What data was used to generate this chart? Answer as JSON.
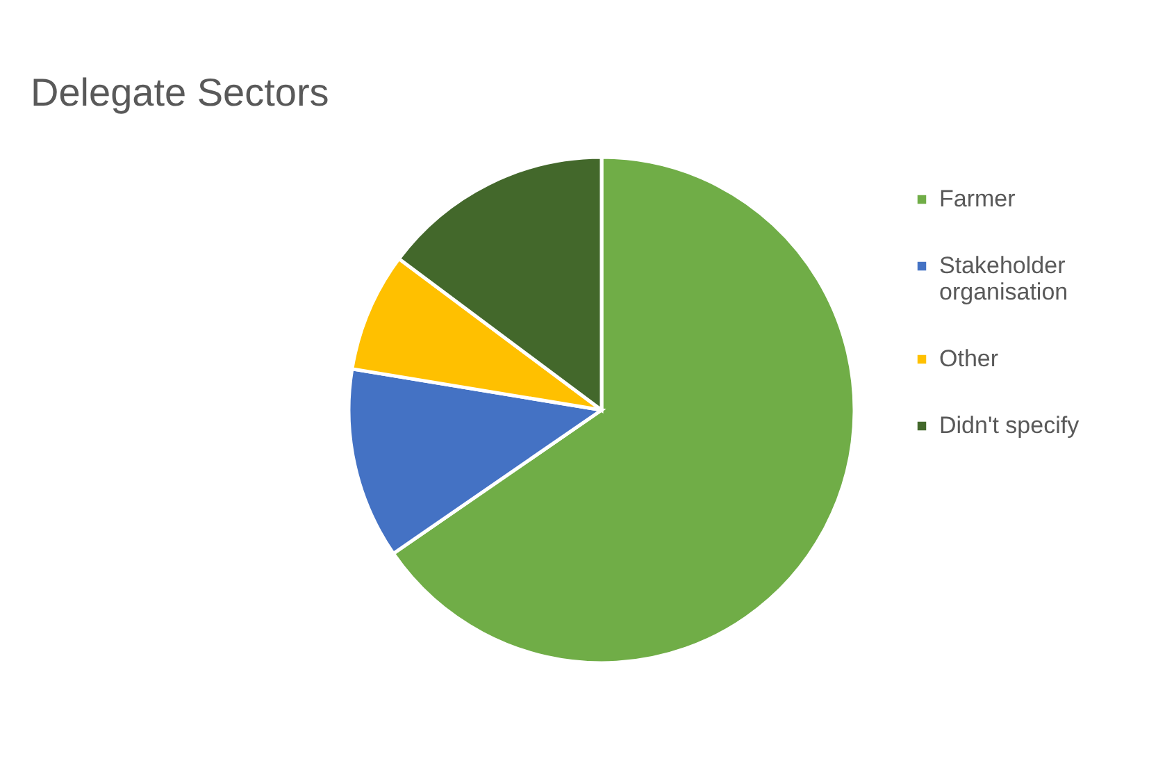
{
  "chart_data": {
    "type": "pie",
    "title": "Delegate Sectors",
    "categories": [
      "Farmer",
      "Stakeholder organisation",
      "Other",
      "Didn't specify"
    ],
    "values": [
      65.4,
      12.2,
      7.6,
      14.8
    ],
    "colors": [
      "#70ad47",
      "#4472c4",
      "#ffc000",
      "#43682b"
    ],
    "legend": "right"
  }
}
